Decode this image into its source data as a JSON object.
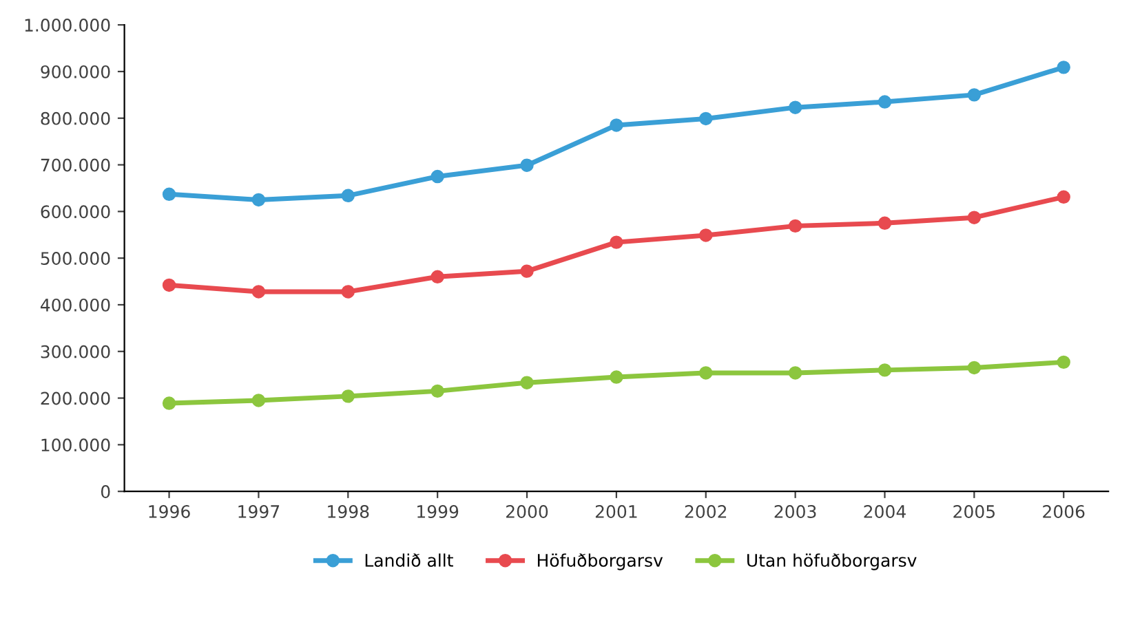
{
  "chart_data": {
    "type": "line",
    "categories": [
      "1996",
      "1997",
      "1998",
      "1999",
      "2000",
      "2001",
      "2002",
      "2003",
      "2004",
      "2005",
      "2006"
    ],
    "series": [
      {
        "name": "Landið allt",
        "color": "#3a9fd6",
        "values": [
          637000,
          625000,
          634000,
          675000,
          699000,
          785000,
          799000,
          823000,
          835000,
          850000,
          909000
        ]
      },
      {
        "name": "Höfuðborgarsv",
        "color": "#e84a4f",
        "values": [
          442000,
          428000,
          428000,
          460000,
          472000,
          534000,
          549000,
          569000,
          575000,
          587000,
          631000
        ]
      },
      {
        "name": "Utan höfuðborgarsv",
        "color": "#8cc63e",
        "values": [
          189000,
          195000,
          204000,
          215000,
          233000,
          245000,
          254000,
          254000,
          260000,
          265000,
          277000
        ]
      }
    ],
    "ylim": [
      0,
      1000000
    ],
    "yticks": [
      {
        "value": 0,
        "label": "0"
      },
      {
        "value": 100000,
        "label": "100.000"
      },
      {
        "value": 200000,
        "label": "200.000"
      },
      {
        "value": 300000,
        "label": "300.000"
      },
      {
        "value": 400000,
        "label": "400.000"
      },
      {
        "value": 500000,
        "label": "500.000"
      },
      {
        "value": 600000,
        "label": "600.000"
      },
      {
        "value": 700000,
        "label": "700.000"
      },
      {
        "value": 800000,
        "label": "800.000"
      },
      {
        "value": 900000,
        "label": "900.000"
      },
      {
        "value": 1000000,
        "label": "1.000.000"
      }
    ],
    "grid": false,
    "legend": "bottom",
    "marker": "circle",
    "line_style": "solid"
  }
}
